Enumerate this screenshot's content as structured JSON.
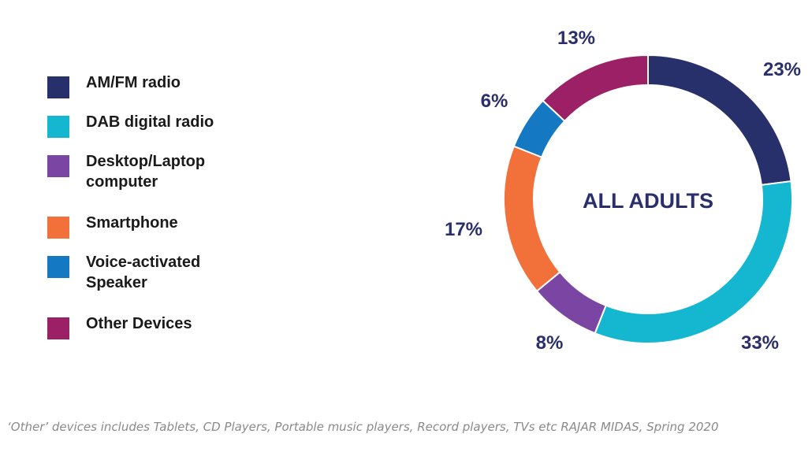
{
  "chart_data": {
    "type": "pie",
    "center_label": "ALL ADULTS",
    "slices": [
      {
        "name": "AM/FM radio",
        "value": 23,
        "label": "23%",
        "color": "#28306b"
      },
      {
        "name": "DAB digital radio",
        "value": 33,
        "label": "33%",
        "color": "#15b6cf"
      },
      {
        "name": "Desktop/Laptop\ncomputer",
        "value": 8,
        "label": "8%",
        "color": "#7b46a3"
      },
      {
        "name": "Smartphone",
        "value": 17,
        "label": "17%",
        "color": "#f2703a"
      },
      {
        "name": "Voice-activated\nSpeaker",
        "value": 6,
        "label": "6%",
        "color": "#1478c3"
      },
      {
        "name": "Other Devices",
        "value": 13,
        "label": "13%",
        "color": "#9b2065"
      }
    ],
    "legend_position": "left",
    "footnote": "‘Other’ devices includes Tablets, CD Players, Portable music players, Record players, TVs etc RAJAR MIDAS, Spring 2020"
  }
}
